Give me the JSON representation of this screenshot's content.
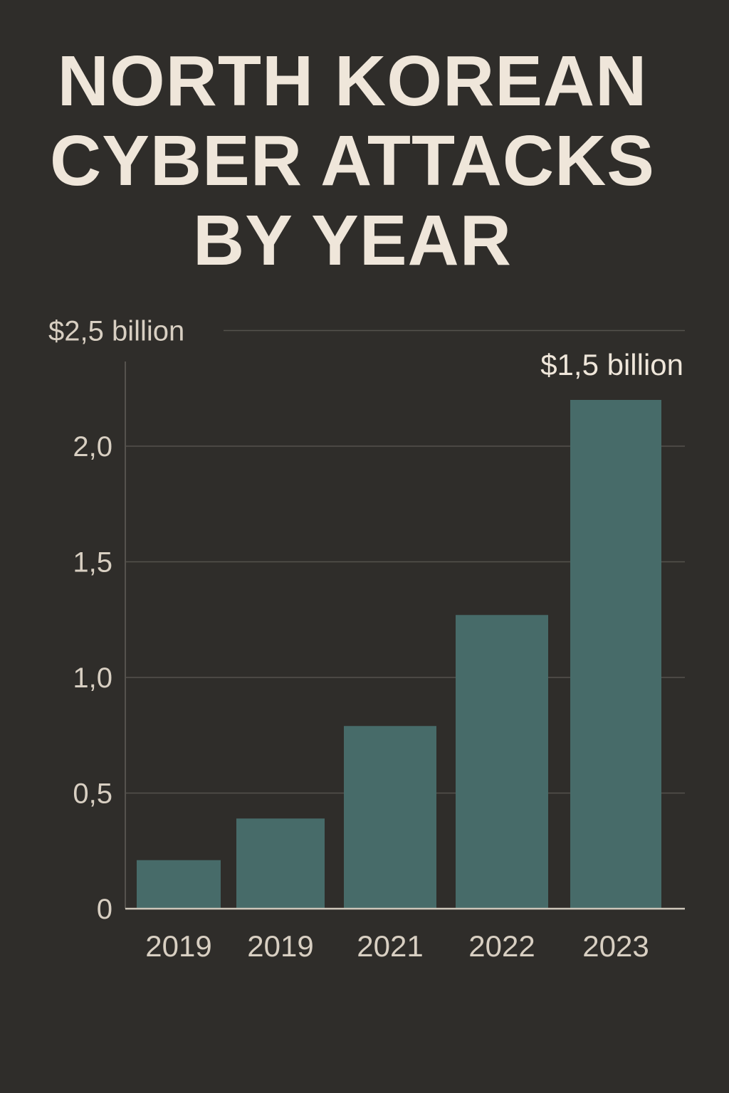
{
  "title_lines": [
    "NORTH KOREAN",
    "CYBER ATTACKS",
    "BY YEAR"
  ],
  "chart_data": {
    "type": "bar",
    "title": "NORTH KOREAN CYBER ATTACKS BY YEAR",
    "categories": [
      "2019",
      "2019",
      "2021",
      "2022",
      "2023"
    ],
    "values": [
      0.21,
      0.39,
      0.79,
      1.27,
      2.2
    ],
    "ylim": [
      0,
      2.5
    ],
    "yticks": [
      {
        "value": 0,
        "label": "0"
      },
      {
        "value": 0.5,
        "label": "0,5"
      },
      {
        "value": 1.0,
        "label": "1,0"
      },
      {
        "value": 1.5,
        "label": "1,5"
      },
      {
        "value": 2.0,
        "label": "2,0"
      },
      {
        "value": 2.5,
        "label": "$2,5 billion"
      }
    ],
    "annotation": "$1,5 billion",
    "grid": true,
    "colors": {
      "background": "#2f2d2a",
      "bar": "#476b69",
      "text": "#d8cfc2",
      "title": "#efe6da",
      "grid": "#55524d",
      "axis": "#cfc7bb"
    }
  }
}
